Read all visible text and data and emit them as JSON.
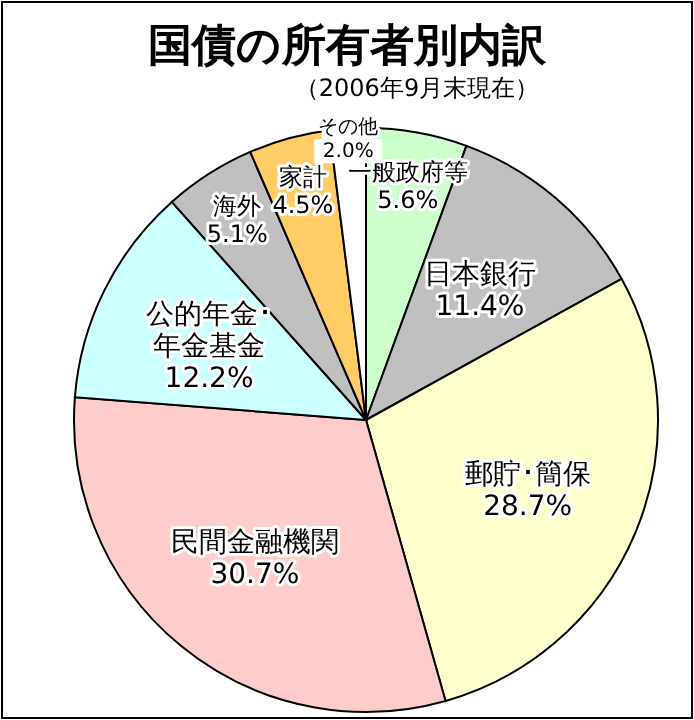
{
  "chart_data": {
    "type": "pie",
    "title": "国債の所有者別内訳",
    "subtitle": "（2006年9月末現在）",
    "categories": [
      "一般政府等",
      "日本銀行",
      "郵貯･簡保",
      "民間金融機関",
      "公的年金･年金基金",
      "海外",
      "家計",
      "その他"
    ],
    "values": [
      5.6,
      11.4,
      28.7,
      30.7,
      12.2,
      5.1,
      4.5,
      2.0
    ],
    "value_labels": [
      "5.6%",
      "11.4%",
      "28.7%",
      "30.7%",
      "12.2%",
      "5.1%",
      "4.5%",
      "2.0%"
    ],
    "colors": [
      "#ccffcc",
      "#c0c0c0",
      "#ffffcc",
      "#ffcccc",
      "#ccffff",
      "#c0c0c0",
      "#ffcc66",
      "#ffffff"
    ],
    "legend": false
  }
}
